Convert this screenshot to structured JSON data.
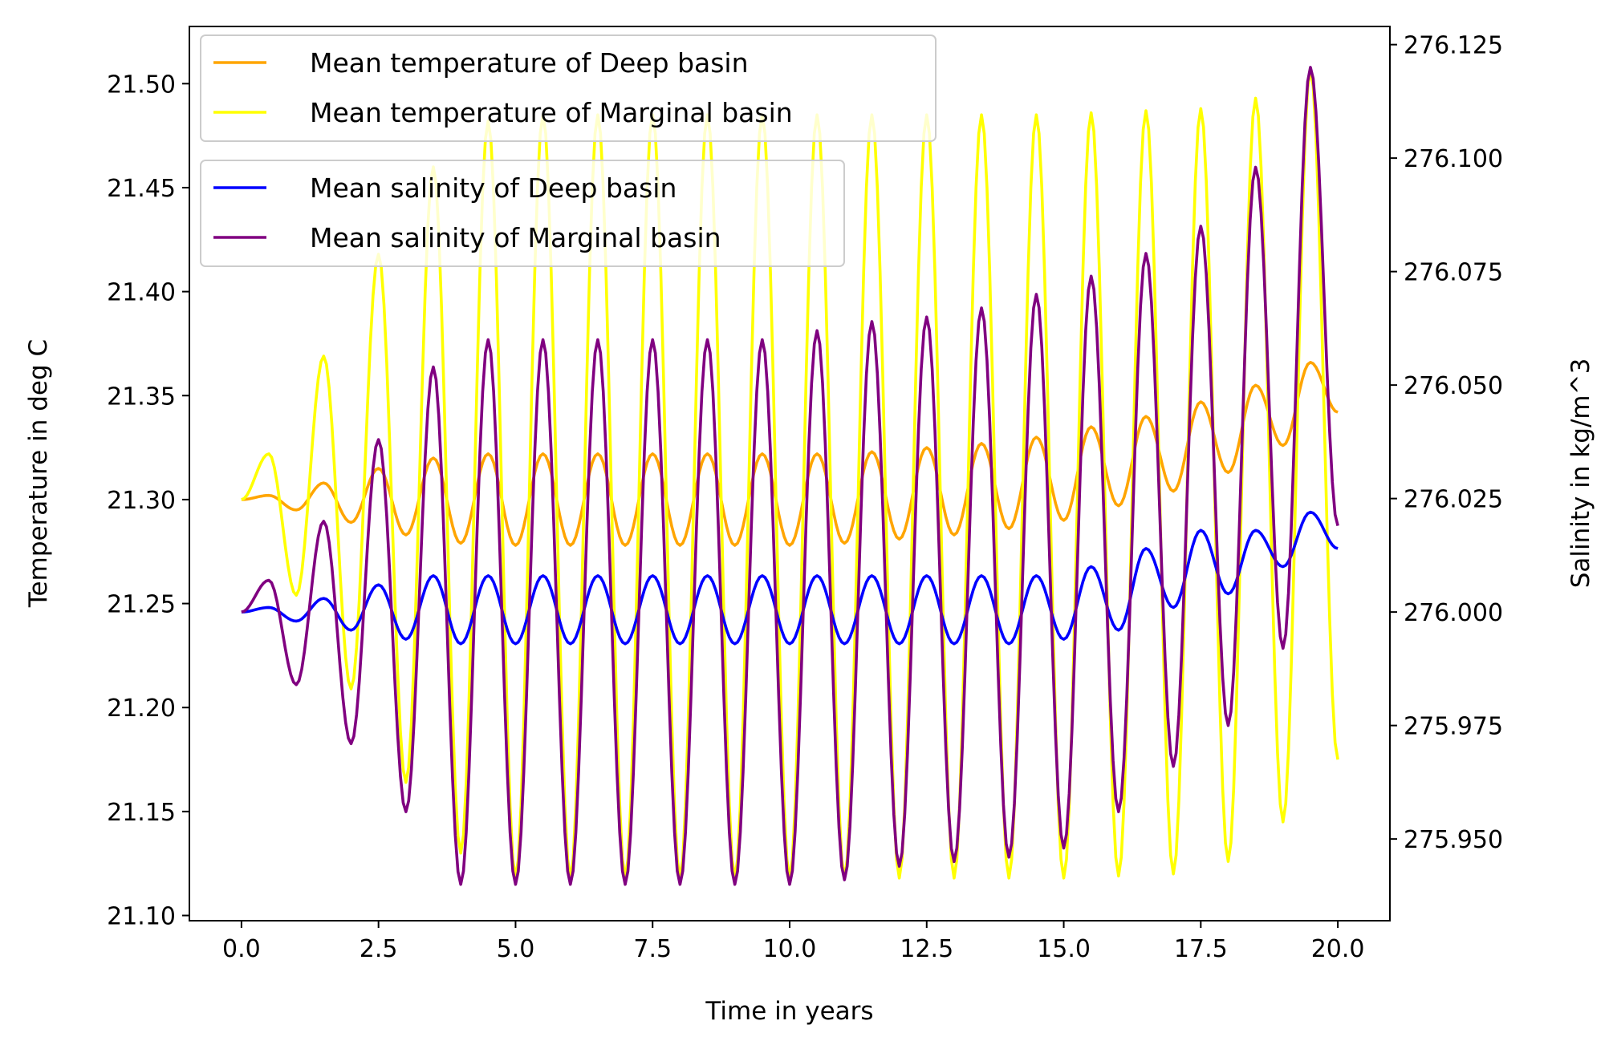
{
  "chart_data": {
    "type": "line",
    "title": "",
    "xlabel": "Time in years",
    "ylabel_left": "Temperature in deg C",
    "ylabel_right": "Salinity in kg/m^3",
    "x_range": [
      0,
      20
    ],
    "xlim": [
      -0.95,
      20.95
    ],
    "ylim_left": [
      21.0975,
      21.5275
    ],
    "ylim_right": [
      275.932,
      276.129
    ],
    "x_ticks": [
      "0.0",
      "2.5",
      "5.0",
      "7.5",
      "10.0",
      "12.5",
      "15.0",
      "17.5",
      "20.0"
    ],
    "y_ticks_left": [
      "21.10",
      "21.15",
      "21.20",
      "21.25",
      "21.30",
      "21.35",
      "21.40",
      "21.45",
      "21.50"
    ],
    "y_ticks_right": [
      "275.950",
      "275.975",
      "276.000",
      "276.025",
      "276.050",
      "276.075",
      "276.100",
      "276.125"
    ],
    "grid": false,
    "legends": [
      {
        "placement": "top-left",
        "entries": [
          "Mean temperature of Deep basin",
          "Mean temperature of Marginal basin"
        ]
      },
      {
        "placement": "upper-left",
        "entries": [
          "Mean salinity of Deep basin",
          "Mean salinity of Marginal basin"
        ]
      }
    ],
    "series": [
      {
        "name": "Mean temperature of Deep basin",
        "axis": "left",
        "color": "#ffa500",
        "start": 21.3,
        "peaks": [
          21.302,
          21.308,
          21.315,
          21.32,
          21.322,
          21.322,
          21.322,
          21.322,
          21.322,
          21.322,
          21.322,
          21.323,
          21.325,
          21.327,
          21.33,
          21.335,
          21.34,
          21.347,
          21.355,
          21.366
        ],
        "troughs": [
          21.295,
          21.289,
          21.283,
          21.279,
          21.278,
          21.278,
          21.278,
          21.278,
          21.278,
          21.278,
          21.279,
          21.281,
          21.283,
          21.286,
          21.29,
          21.297,
          21.304,
          21.313,
          21.326
        ],
        "end": 21.342
      },
      {
        "name": "Mean temperature of Marginal basin",
        "axis": "left",
        "color": "#ffff00",
        "start": 21.3,
        "peaks": [
          21.322,
          21.369,
          21.418,
          21.46,
          21.482,
          21.485,
          21.485,
          21.485,
          21.485,
          21.485,
          21.485,
          21.485,
          21.485,
          21.485,
          21.485,
          21.486,
          21.487,
          21.488,
          21.493,
          21.507
        ],
        "troughs": [
          21.254,
          21.209,
          21.164,
          21.13,
          21.118,
          21.118,
          21.118,
          21.118,
          21.118,
          21.118,
          21.118,
          21.118,
          21.118,
          21.118,
          21.118,
          21.119,
          21.12,
          21.126,
          21.145
        ],
        "end": 21.175
      },
      {
        "name": "Mean salinity of Deep basin",
        "axis": "right",
        "color": "#0000ff",
        "start": 276.0,
        "peaks": [
          276.001,
          276.003,
          276.006,
          276.008,
          276.008,
          276.008,
          276.008,
          276.008,
          276.008,
          276.008,
          276.008,
          276.008,
          276.008,
          276.008,
          276.008,
          276.01,
          276.014,
          276.018,
          276.018,
          276.022
        ],
        "troughs": [
          275.998,
          275.996,
          275.994,
          275.993,
          275.993,
          275.993,
          275.993,
          275.993,
          275.993,
          275.993,
          275.993,
          275.993,
          275.993,
          275.993,
          275.994,
          275.996,
          276.001,
          276.004,
          276.01
        ],
        "end": 276.014
      },
      {
        "name": "Mean salinity of Marginal basin",
        "axis": "right",
        "color": "#800080",
        "start": 276.0,
        "peaks": [
          276.007,
          276.02,
          276.038,
          276.054,
          276.06,
          276.06,
          276.06,
          276.06,
          276.06,
          276.06,
          276.062,
          276.064,
          276.065,
          276.067,
          276.07,
          276.074,
          276.079,
          276.085,
          276.098,
          276.12
        ],
        "troughs": [
          275.984,
          275.971,
          275.956,
          275.94,
          275.94,
          275.94,
          275.94,
          275.94,
          275.94,
          275.94,
          275.941,
          275.944,
          275.945,
          275.946,
          275.948,
          275.956,
          275.966,
          275.975,
          275.992
        ],
        "end": 276.019
      }
    ]
  }
}
